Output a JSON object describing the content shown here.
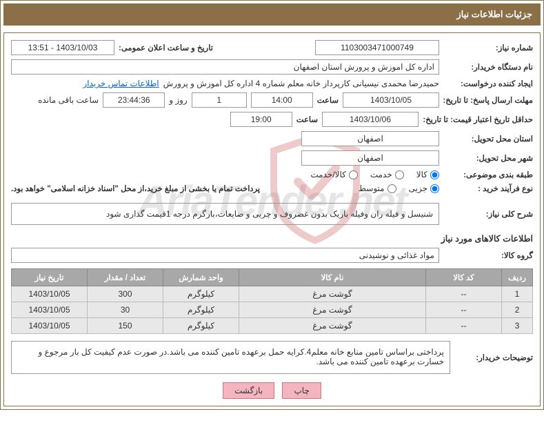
{
  "header": {
    "title": "جزئیات اطلاعات نیاز"
  },
  "fields": {
    "need_number_label": "شماره نیاز:",
    "need_number": "1103003471000749",
    "ann_date_label": "تاریخ و ساعت اعلان عمومی:",
    "ann_date": "1403/10/03 - 13:51",
    "buyer_org_label": "نام دستگاه خریدار:",
    "buyer_org": "اداره کل اموزش و پرورش استان اصفهان",
    "requester_label": "ایجاد کننده درخواست:",
    "requester": "حمیدرضا محمدی نیسیانی کارپرداز خانه معلم شماره 4 اداره کل اموزش و پرورش",
    "contact_link": "اطلاعات تماس خریدار",
    "resp_deadline_label": "مهلت ارسال پاسخ: تا تاریخ:",
    "resp_date": "1403/10/05",
    "time_label": "ساعت",
    "resp_time": "14:00",
    "days_val": "1",
    "days_and": "روز و",
    "hms": "23:44:36",
    "remaining": "ساعت باقی مانده",
    "price_valid_label": "حداقل تاریخ اعتبار قیمت: تا تاریخ:",
    "price_valid_date": "1403/10/06",
    "price_valid_time": "19:00",
    "province_label": "استان محل تحویل:",
    "province": "اصفهان",
    "city_label": "شهر محل تحویل:",
    "city": "اصفهان",
    "category_label": "طبقه بندی موضوعی:",
    "cat_goods": "کالا",
    "cat_service": "خدمت",
    "cat_both": "کالا/خدمت",
    "purchase_type_label": "نوع فرآیند خرید :",
    "pt_partial": "جزیی",
    "pt_medium": "متوسط",
    "payment_note": "پرداخت تمام یا بخشی از مبلغ خرید،از محل \"اسناد خزانه اسلامی\" خواهد بود.",
    "need_desc_label": "شرح کلی نیاز:",
    "need_desc": "شنیسل و فیله ران وفیله باریک بدون غضروف و چربی و ضایعات،بارگرم درجه 1قیمت گذاری شود",
    "items_info_title": "اطلاعات کالاهای مورد نیاز",
    "group_label": "گروه کالا:",
    "group": "مواد غذائی و نوشیدنی",
    "buyer_note_label": "توضیحات خریدار:",
    "buyer_note": "پرداختی براساس تامین منابع خانه معلم4.کرایه حمل برعهده تامین کننده می باشد.در صورت عدم کیفیت کل بار مرجوع و خسارت برعهده تامین کننده می باشد."
  },
  "table": {
    "headers": {
      "row": "ردیف",
      "code": "کد کالا",
      "name": "نام کالا",
      "unit": "واحد شمارش",
      "qty": "تعداد / مقدار",
      "date": "تاریخ نیاز"
    },
    "rows": [
      {
        "n": "1",
        "code": "--",
        "name": "گوشت مرغ",
        "unit": "کیلوگرم",
        "qty": "300",
        "date": "1403/10/05"
      },
      {
        "n": "2",
        "code": "--",
        "name": "گوشت مرغ",
        "unit": "کیلوگرم",
        "qty": "30",
        "date": "1403/10/05"
      },
      {
        "n": "3",
        "code": "--",
        "name": "گوشت مرغ",
        "unit": "کیلوگرم",
        "qty": "150",
        "date": "1403/10/05"
      }
    ]
  },
  "buttons": {
    "print": "چاپ",
    "back": "بازگشت"
  },
  "watermark": {
    "text": "AriaTender.net"
  },
  "styles": {
    "header_bg": "#8a6f47",
    "header_fg": "#ffffff",
    "th_bg": "#a8a8a8",
    "td_bg": "#e8e8e8",
    "btn_bg": "#f5b5c0",
    "link_color": "#0066cc",
    "shield_color": "#c94545"
  }
}
